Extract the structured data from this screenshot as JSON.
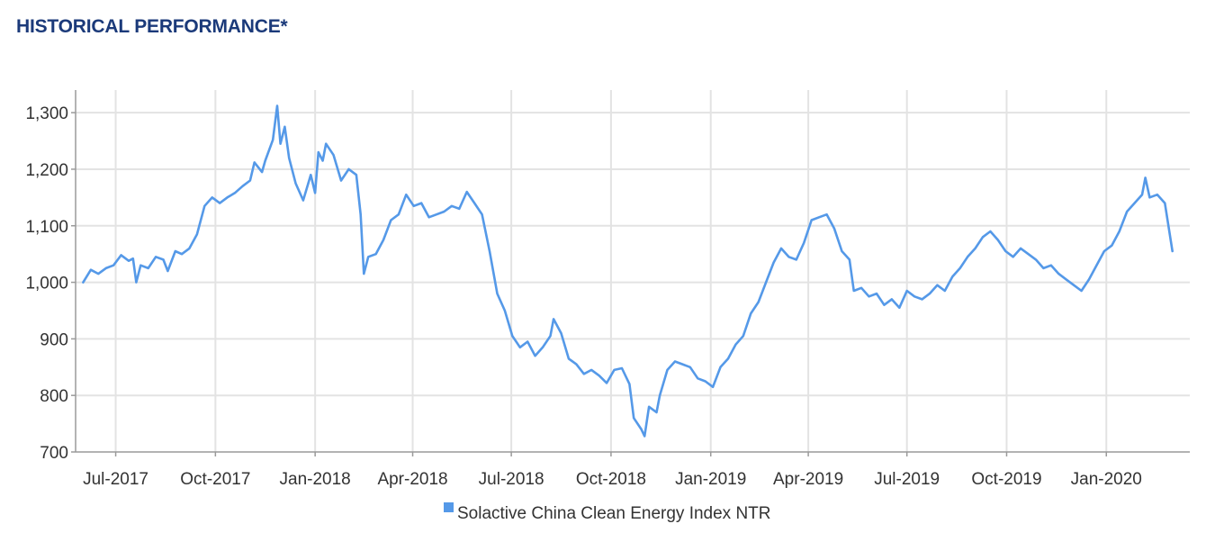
{
  "page": {
    "title": "HISTORICAL PERFORMANCE*"
  },
  "chart_data": {
    "type": "line",
    "title": "HISTORICAL PERFORMANCE*",
    "xlabel": "",
    "ylabel": "",
    "x_tick_labels": [
      "Jul-2017",
      "Oct-2017",
      "Jan-2018",
      "Apr-2018",
      "Jul-2018",
      "Oct-2018",
      "Jan-2019",
      "Apr-2019",
      "Jul-2019",
      "Oct-2019",
      "Jan-2020"
    ],
    "x_range": [
      "2017-05-25",
      "2020-03-18"
    ],
    "y_ticks": [
      700,
      800,
      900,
      1000,
      1100,
      1200,
      1300
    ],
    "y_tick_labels": [
      "700",
      "800",
      "900",
      "1,000",
      "1,100",
      "1,200",
      "1,300"
    ],
    "ylim": [
      700,
      1340
    ],
    "grid": true,
    "legend_position": "bottom-center",
    "series": [
      {
        "name": "Solactive China Clean Energy Index NTR",
        "color": "#5599e8",
        "points": [
          [
            "2017-06-01",
            1000
          ],
          [
            "2017-06-08",
            1022
          ],
          [
            "2017-06-15",
            1015
          ],
          [
            "2017-06-22",
            1025
          ],
          [
            "2017-06-29",
            1030
          ],
          [
            "2017-07-06",
            1048
          ],
          [
            "2017-07-13",
            1038
          ],
          [
            "2017-07-17",
            1042
          ],
          [
            "2017-07-20",
            1000
          ],
          [
            "2017-07-24",
            1030
          ],
          [
            "2017-07-31",
            1025
          ],
          [
            "2017-08-07",
            1045
          ],
          [
            "2017-08-14",
            1040
          ],
          [
            "2017-08-18",
            1020
          ],
          [
            "2017-08-25",
            1055
          ],
          [
            "2017-08-31",
            1050
          ],
          [
            "2017-09-07",
            1060
          ],
          [
            "2017-09-14",
            1085
          ],
          [
            "2017-09-21",
            1135
          ],
          [
            "2017-09-28",
            1150
          ],
          [
            "2017-10-05",
            1140
          ],
          [
            "2017-10-12",
            1150
          ],
          [
            "2017-10-19",
            1158
          ],
          [
            "2017-10-26",
            1170
          ],
          [
            "2017-11-02",
            1180
          ],
          [
            "2017-11-06",
            1212
          ],
          [
            "2017-11-13",
            1195
          ],
          [
            "2017-11-16",
            1215
          ],
          [
            "2017-11-23",
            1252
          ],
          [
            "2017-11-27",
            1312
          ],
          [
            "2017-11-30",
            1245
          ],
          [
            "2017-12-04",
            1275
          ],
          [
            "2017-12-08",
            1220
          ],
          [
            "2017-12-14",
            1175
          ],
          [
            "2017-12-21",
            1145
          ],
          [
            "2017-12-28",
            1190
          ],
          [
            "2018-01-01",
            1158
          ],
          [
            "2018-01-04",
            1230
          ],
          [
            "2018-01-08",
            1215
          ],
          [
            "2018-01-11",
            1245
          ],
          [
            "2018-01-18",
            1225
          ],
          [
            "2018-01-25",
            1180
          ],
          [
            "2018-02-01",
            1200
          ],
          [
            "2018-02-08",
            1190
          ],
          [
            "2018-02-12",
            1120
          ],
          [
            "2018-02-15",
            1015
          ],
          [
            "2018-02-19",
            1045
          ],
          [
            "2018-02-26",
            1050
          ],
          [
            "2018-03-05",
            1075
          ],
          [
            "2018-03-12",
            1110
          ],
          [
            "2018-03-19",
            1120
          ],
          [
            "2018-03-26",
            1155
          ],
          [
            "2018-04-02",
            1135
          ],
          [
            "2018-04-09",
            1140
          ],
          [
            "2018-04-16",
            1115
          ],
          [
            "2018-04-23",
            1120
          ],
          [
            "2018-04-30",
            1125
          ],
          [
            "2018-05-07",
            1135
          ],
          [
            "2018-05-14",
            1130
          ],
          [
            "2018-05-21",
            1160
          ],
          [
            "2018-05-28",
            1140
          ],
          [
            "2018-06-04",
            1120
          ],
          [
            "2018-06-11",
            1055
          ],
          [
            "2018-06-18",
            980
          ],
          [
            "2018-06-25",
            950
          ],
          [
            "2018-07-02",
            905
          ],
          [
            "2018-07-09",
            885
          ],
          [
            "2018-07-16",
            895
          ],
          [
            "2018-07-23",
            870
          ],
          [
            "2018-07-30",
            885
          ],
          [
            "2018-08-06",
            905
          ],
          [
            "2018-08-09",
            935
          ],
          [
            "2018-08-16",
            910
          ],
          [
            "2018-08-23",
            865
          ],
          [
            "2018-08-30",
            855
          ],
          [
            "2018-09-06",
            838
          ],
          [
            "2018-09-13",
            845
          ],
          [
            "2018-09-20",
            835
          ],
          [
            "2018-09-27",
            822
          ],
          [
            "2018-10-04",
            845
          ],
          [
            "2018-10-11",
            848
          ],
          [
            "2018-10-18",
            820
          ],
          [
            "2018-10-22",
            760
          ],
          [
            "2018-10-29",
            740
          ],
          [
            "2018-11-01",
            728
          ],
          [
            "2018-11-05",
            780
          ],
          [
            "2018-11-12",
            770
          ],
          [
            "2018-11-15",
            800
          ],
          [
            "2018-11-22",
            845
          ],
          [
            "2018-11-29",
            860
          ],
          [
            "2018-12-06",
            855
          ],
          [
            "2018-12-13",
            850
          ],
          [
            "2018-12-20",
            830
          ],
          [
            "2018-12-27",
            825
          ],
          [
            "2019-01-03",
            815
          ],
          [
            "2019-01-10",
            850
          ],
          [
            "2019-01-17",
            865
          ],
          [
            "2019-01-24",
            890
          ],
          [
            "2019-01-31",
            905
          ],
          [
            "2019-02-07",
            945
          ],
          [
            "2019-02-14",
            965
          ],
          [
            "2019-02-21",
            1000
          ],
          [
            "2019-02-28",
            1035
          ],
          [
            "2019-03-07",
            1060
          ],
          [
            "2019-03-14",
            1045
          ],
          [
            "2019-03-21",
            1040
          ],
          [
            "2019-03-28",
            1070
          ],
          [
            "2019-04-04",
            1110
          ],
          [
            "2019-04-11",
            1115
          ],
          [
            "2019-04-18",
            1120
          ],
          [
            "2019-04-25",
            1095
          ],
          [
            "2019-05-02",
            1055
          ],
          [
            "2019-05-09",
            1040
          ],
          [
            "2019-05-13",
            985
          ],
          [
            "2019-05-20",
            990
          ],
          [
            "2019-05-27",
            975
          ],
          [
            "2019-06-03",
            980
          ],
          [
            "2019-06-10",
            960
          ],
          [
            "2019-06-17",
            970
          ],
          [
            "2019-06-24",
            955
          ],
          [
            "2019-07-01",
            985
          ],
          [
            "2019-07-08",
            975
          ],
          [
            "2019-07-15",
            970
          ],
          [
            "2019-07-22",
            980
          ],
          [
            "2019-07-29",
            995
          ],
          [
            "2019-08-05",
            985
          ],
          [
            "2019-08-12",
            1010
          ],
          [
            "2019-08-19",
            1025
          ],
          [
            "2019-08-26",
            1045
          ],
          [
            "2019-09-02",
            1060
          ],
          [
            "2019-09-09",
            1080
          ],
          [
            "2019-09-16",
            1090
          ],
          [
            "2019-09-23",
            1075
          ],
          [
            "2019-09-30",
            1055
          ],
          [
            "2019-10-07",
            1045
          ],
          [
            "2019-10-14",
            1060
          ],
          [
            "2019-10-21",
            1050
          ],
          [
            "2019-10-28",
            1040
          ],
          [
            "2019-11-04",
            1025
          ],
          [
            "2019-11-11",
            1030
          ],
          [
            "2019-11-18",
            1015
          ],
          [
            "2019-11-25",
            1005
          ],
          [
            "2019-12-02",
            995
          ],
          [
            "2019-12-09",
            985
          ],
          [
            "2019-12-16",
            1005
          ],
          [
            "2019-12-23",
            1030
          ],
          [
            "2019-12-30",
            1055
          ],
          [
            "2020-01-06",
            1065
          ],
          [
            "2020-01-13",
            1090
          ],
          [
            "2020-01-20",
            1125
          ],
          [
            "2020-01-27",
            1140
          ],
          [
            "2020-02-03",
            1155
          ],
          [
            "2020-02-06",
            1185
          ],
          [
            "2020-02-10",
            1150
          ],
          [
            "2020-02-17",
            1155
          ],
          [
            "2020-02-24",
            1140
          ],
          [
            "2020-03-02",
            1055
          ]
        ]
      }
    ]
  }
}
